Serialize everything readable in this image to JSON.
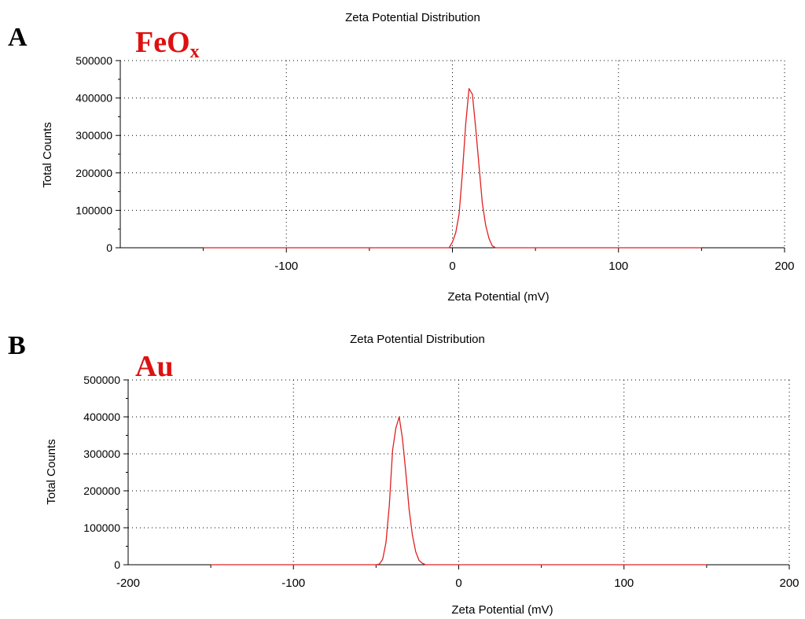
{
  "colors": {
    "series": "#e02020",
    "sample_label": "#dd1111",
    "axis": "#000000",
    "grid": "#000000"
  },
  "chart_data": [
    {
      "panel": "A",
      "sample_label": "FeO",
      "sample_label_subscript": "x",
      "type": "line",
      "title": "Zeta Potential Distribution",
      "xlabel": "Zeta Potential (mV)",
      "ylabel": "Total Counts",
      "xlim": [
        -200,
        200
      ],
      "ylim": [
        0,
        500000
      ],
      "xticks": [
        -100,
        0,
        100,
        200
      ],
      "yticks": [
        0,
        100000,
        200000,
        300000,
        400000,
        500000
      ],
      "grid": true,
      "series": [
        {
          "x": [
            -150,
            -50,
            -2,
            0,
            2,
            4,
            6,
            8,
            10,
            12,
            14,
            16,
            18,
            20,
            22,
            24,
            26,
            30,
            50,
            150
          ],
          "y": [
            0,
            0,
            0,
            15000,
            40000,
            90000,
            200000,
            330000,
            425000,
            410000,
            320000,
            220000,
            120000,
            60000,
            25000,
            5000,
            0,
            0,
            0,
            0
          ]
        }
      ]
    },
    {
      "panel": "B",
      "sample_label": "Au",
      "type": "line",
      "title": "Zeta Potential Distribution",
      "xlabel": "Zeta Potential (mV)",
      "ylabel": "Total Counts",
      "xlim": [
        -200,
        200
      ],
      "ylim": [
        0,
        500000
      ],
      "xticks": [
        -200,
        -100,
        0,
        100,
        200
      ],
      "yticks": [
        0,
        100000,
        200000,
        300000,
        400000,
        500000
      ],
      "grid": true,
      "series": [
        {
          "x": [
            -150,
            -50,
            -48,
            -46,
            -44,
            -42,
            -40,
            -38,
            -36,
            -34,
            -32,
            -30,
            -28,
            -26,
            -24,
            -22,
            -20,
            -18,
            0,
            150
          ],
          "y": [
            0,
            0,
            2000,
            15000,
            60000,
            160000,
            310000,
            370000,
            400000,
            340000,
            250000,
            150000,
            80000,
            35000,
            12000,
            4000,
            0,
            0,
            0,
            0
          ]
        }
      ]
    }
  ]
}
